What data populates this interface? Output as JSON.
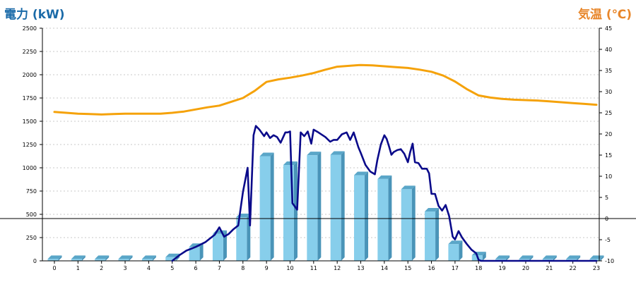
{
  "chart_data": {
    "type": "bar",
    "title": "",
    "xlabel": "",
    "ylabel": "電力 (kW)",
    "ylabel_right": "気温 (℃)",
    "categories": [
      "0",
      "1",
      "2",
      "3",
      "4",
      "5",
      "6",
      "7",
      "8",
      "9",
      "10",
      "11",
      "12",
      "13",
      "14",
      "15",
      "16",
      "17",
      "18",
      "19",
      "20",
      "21",
      "22",
      "23"
    ],
    "ylim": [
      0,
      2500
    ],
    "yticks": [
      0,
      250,
      500,
      750,
      1000,
      1250,
      1500,
      1750,
      2000,
      2250,
      2500
    ],
    "ylim_right": [
      -10,
      45
    ],
    "yticks_right": [
      -10,
      -5,
      0,
      5,
      10,
      15,
      20,
      25,
      30,
      35,
      40,
      45
    ],
    "grid": true,
    "reference_line": {
      "axis": "right",
      "value": 0
    },
    "series": [
      {
        "type": "bar",
        "axis": "left",
        "values": [
          20,
          20,
          20,
          20,
          20,
          40,
          150,
          290,
          470,
          1125,
          1030,
          1135,
          1140,
          920,
          880,
          770,
          530,
          180,
          60,
          20,
          20,
          20,
          20,
          20
        ]
      },
      {
        "type": "line",
        "axis": "left",
        "color": "#0a0a8a",
        "x": [
          5,
          5.3,
          5.6,
          6,
          6.4,
          6.8,
          7,
          7.2,
          7.4,
          7.6,
          7.8,
          8,
          8.2,
          8.3,
          8.45,
          8.55,
          8.7,
          8.9,
          9,
          9.15,
          9.3,
          9.45,
          9.6,
          9.8,
          9.9,
          10,
          10.1,
          10.3,
          10.45,
          10.6,
          10.75,
          10.9,
          11,
          11.2,
          11.5,
          11.7,
          11.85,
          12,
          12.2,
          12.4,
          12.55,
          12.7,
          12.9,
          13,
          13.2,
          13.4,
          13.6,
          13.7,
          13.85,
          14,
          14.1,
          14.2,
          14.3,
          14.4,
          14.55,
          14.7,
          14.85,
          15,
          15.1,
          15.2,
          15.3,
          15.45,
          15.6,
          15.8,
          15.9,
          16,
          16.15,
          16.3,
          16.45,
          16.6,
          16.75,
          16.9,
          17,
          17.15,
          17.3,
          17.5,
          17.7,
          17.9,
          18,
          18.1,
          19,
          20,
          21,
          22,
          23
        ],
        "values": [
          0,
          60,
          110,
          150,
          200,
          280,
          360,
          260,
          290,
          340,
          380,
          740,
          1000,
          380,
          1350,
          1450,
          1410,
          1340,
          1380,
          1320,
          1350,
          1330,
          1270,
          1380,
          1380,
          1390,
          620,
          550,
          1380,
          1340,
          1390,
          1260,
          1410,
          1380,
          1330,
          1280,
          1300,
          1300,
          1360,
          1380,
          1300,
          1380,
          1220,
          1160,
          1030,
          960,
          930,
          1080,
          1250,
          1350,
          1310,
          1230,
          1140,
          1170,
          1190,
          1200,
          1150,
          1060,
          1170,
          1260,
          1060,
          1050,
          990,
          990,
          940,
          720,
          720,
          590,
          540,
          600,
          480,
          260,
          230,
          320,
          250,
          180,
          120,
          80,
          10,
          0,
          0,
          0,
          0,
          0,
          0
        ]
      },
      {
        "type": "line",
        "axis": "right",
        "color": "#f5a20a",
        "x": [
          0,
          0.5,
          1,
          1.5,
          2,
          2.5,
          3,
          3.5,
          4,
          4.5,
          5,
          5.5,
          6,
          6.5,
          7,
          7.5,
          8,
          8.5,
          9,
          9.5,
          10,
          10.5,
          11,
          11.5,
          12,
          12.5,
          13,
          13.5,
          14,
          14.5,
          15,
          15.5,
          16,
          16.5,
          17,
          17.5,
          18,
          18.5,
          19,
          19.5,
          20,
          20.5,
          21,
          21.5,
          22,
          22.5,
          23
        ],
        "values": [
          25.2,
          25,
          24.8,
          24.7,
          24.6,
          24.7,
          24.8,
          24.8,
          24.8,
          24.8,
          25,
          25.3,
          25.8,
          26.3,
          26.7,
          27.6,
          28.5,
          30.2,
          32.3,
          32.9,
          33.3,
          33.8,
          34.4,
          35.2,
          35.9,
          36.1,
          36.3,
          36.2,
          36,
          35.8,
          35.6,
          35.2,
          34.7,
          33.8,
          32.4,
          30.6,
          29.1,
          28.6,
          28.3,
          28.1,
          28,
          27.9,
          27.7,
          27.5,
          27.3,
          27.1,
          26.9
        ]
      }
    ]
  },
  "colors": {
    "ylabel_left": "#1a6aa8",
    "ylabel_right": "#e8862a",
    "bar_face": "#87ceeb",
    "bar_side": "#4a94b8",
    "bar_top": "#5aa6c8",
    "power_line": "#0a0a8a",
    "temp_line": "#f5a20a"
  }
}
